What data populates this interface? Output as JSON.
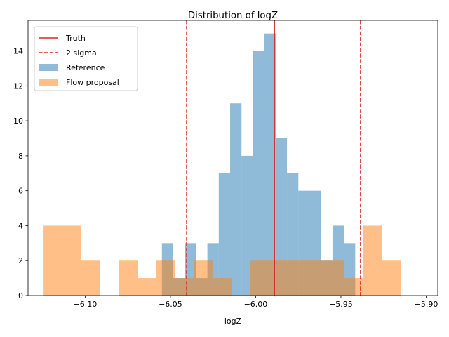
{
  "chart_data": {
    "type": "histogram",
    "title": "Distribution of logZ",
    "xlabel": "logZ",
    "ylabel": "",
    "xlim": [
      -6.1335,
      -5.8932
    ],
    "ylim": [
      0,
      15.75
    ],
    "xticks": [
      -6.1,
      -6.05,
      -6.0,
      -5.95,
      -5.9
    ],
    "xtick_labels": [
      "−6.10",
      "−6.05",
      "−6.00",
      "−5.95",
      "−5.90"
    ],
    "yticks": [
      0,
      2,
      4,
      6,
      8,
      10,
      12,
      14
    ],
    "ytick_labels": [
      "0",
      "2",
      "4",
      "6",
      "8",
      "10",
      "12",
      "14"
    ],
    "grid": false,
    "legend_position": "upper-left",
    "series": [
      {
        "name": "Reference",
        "kind": "histogram",
        "color": "#1f77b4",
        "alpha": 0.5,
        "bin_start": -6.055,
        "bin_width": 0.00667,
        "values": [
          3,
          1,
          3,
          1,
          3,
          7,
          11,
          8,
          14,
          15,
          9,
          7,
          6,
          6,
          2,
          4,
          3
        ]
      },
      {
        "name": "Flow proposal",
        "kind": "histogram",
        "color": "#ff7f0e",
        "alpha": 0.5,
        "bin_start": -6.1244,
        "bin_width": 0.01103,
        "values": [
          4,
          4,
          2,
          0,
          2,
          1,
          2,
          1,
          2,
          1,
          0,
          2,
          2,
          2,
          2,
          2,
          1,
          4,
          2,
          0
        ]
      }
    ],
    "lines": [
      {
        "name": "Truth",
        "x": -5.989,
        "color": "#d62728",
        "style": "solid"
      },
      {
        "name": "2 sigma",
        "x": [
          -6.0405,
          -5.9385
        ],
        "color": "#d62728",
        "style": "dashed"
      }
    ]
  }
}
